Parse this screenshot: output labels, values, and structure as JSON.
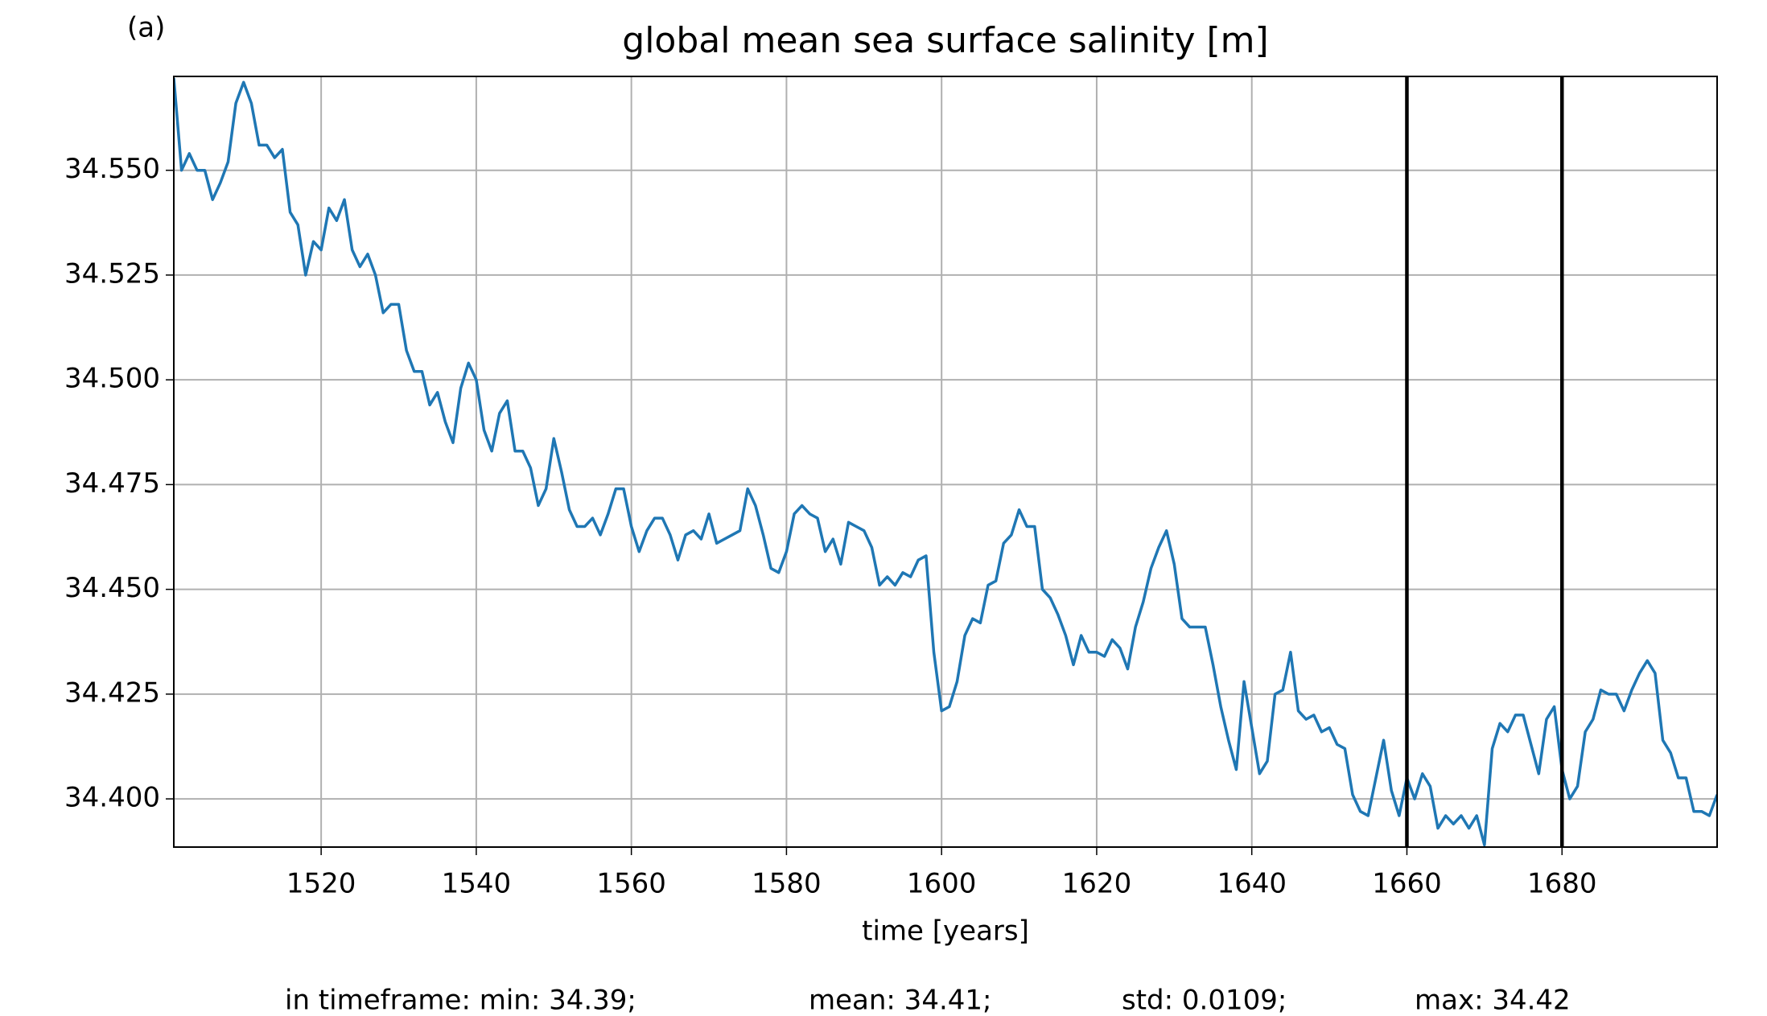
{
  "chart_data": {
    "type": "line",
    "panel_label": "(a)",
    "title": "global mean sea surface salinity [m]",
    "xlabel": "time [years]",
    "footer": [
      "in timeframe: min: 34.39;",
      "mean: 34.41;",
      "std: 0.0109;",
      "max: 34.42"
    ],
    "x": [
      1501,
      1502,
      1503,
      1504,
      1505,
      1506,
      1507,
      1508,
      1509,
      1510,
      1511,
      1512,
      1513,
      1514,
      1515,
      1516,
      1517,
      1518,
      1519,
      1520,
      1521,
      1522,
      1523,
      1524,
      1525,
      1526,
      1527,
      1528,
      1529,
      1530,
      1531,
      1532,
      1533,
      1534,
      1535,
      1536,
      1537,
      1538,
      1539,
      1540,
      1541,
      1542,
      1543,
      1544,
      1545,
      1546,
      1547,
      1548,
      1549,
      1550,
      1551,
      1552,
      1553,
      1554,
      1555,
      1556,
      1557,
      1558,
      1559,
      1560,
      1561,
      1562,
      1563,
      1564,
      1565,
      1566,
      1567,
      1568,
      1569,
      1570,
      1571,
      1572,
      1573,
      1574,
      1575,
      1576,
      1577,
      1578,
      1579,
      1580,
      1581,
      1582,
      1583,
      1584,
      1585,
      1586,
      1587,
      1588,
      1589,
      1590,
      1591,
      1592,
      1593,
      1594,
      1595,
      1596,
      1597,
      1598,
      1599,
      1600,
      1601,
      1602,
      1603,
      1604,
      1605,
      1606,
      1607,
      1608,
      1609,
      1610,
      1611,
      1612,
      1613,
      1614,
      1615,
      1616,
      1617,
      1618,
      1619,
      1620,
      1621,
      1622,
      1623,
      1624,
      1625,
      1626,
      1627,
      1628,
      1629,
      1630,
      1631,
      1632,
      1633,
      1634,
      1635,
      1636,
      1637,
      1638,
      1639,
      1640,
      1641,
      1642,
      1643,
      1644,
      1645,
      1646,
      1647,
      1648,
      1649,
      1650,
      1651,
      1652,
      1653,
      1654,
      1655,
      1656,
      1657,
      1658,
      1659,
      1660,
      1661,
      1662,
      1663,
      1664,
      1665,
      1666,
      1667,
      1668,
      1669,
      1670,
      1671,
      1672,
      1673,
      1674,
      1675,
      1676,
      1677,
      1678,
      1679,
      1680,
      1681,
      1682,
      1683,
      1684,
      1685,
      1686,
      1687,
      1688,
      1689,
      1690,
      1691,
      1692,
      1693,
      1694,
      1695,
      1696,
      1697,
      1698,
      1699,
      1700
    ],
    "series": [
      {
        "name": "global mean sea surface salinity",
        "color": "#1f77b4",
        "values": [
          34.572,
          34.55,
          34.554,
          34.55,
          34.55,
          34.543,
          34.547,
          34.552,
          34.566,
          34.571,
          34.566,
          34.556,
          34.556,
          34.553,
          34.555,
          34.54,
          34.537,
          34.525,
          34.533,
          34.531,
          34.541,
          34.538,
          34.543,
          34.531,
          34.527,
          34.53,
          34.525,
          34.516,
          34.518,
          34.518,
          34.507,
          34.502,
          34.502,
          34.494,
          34.497,
          34.49,
          34.485,
          34.498,
          34.504,
          34.5,
          34.488,
          34.483,
          34.492,
          34.495,
          34.483,
          34.483,
          34.479,
          34.47,
          34.474,
          34.486,
          34.478,
          34.469,
          34.465,
          34.465,
          34.467,
          34.463,
          34.468,
          34.474,
          34.474,
          34.465,
          34.459,
          34.464,
          34.467,
          34.467,
          34.463,
          34.457,
          34.463,
          34.464,
          34.462,
          34.468,
          34.461,
          34.462,
          34.463,
          34.464,
          34.474,
          34.47,
          34.463,
          34.455,
          34.454,
          34.459,
          34.468,
          34.47,
          34.468,
          34.467,
          34.459,
          34.462,
          34.456,
          34.466,
          34.465,
          34.464,
          34.46,
          34.451,
          34.453,
          34.451,
          34.454,
          34.453,
          34.457,
          34.458,
          34.435,
          34.421,
          34.422,
          34.428,
          34.439,
          34.443,
          34.442,
          34.451,
          34.452,
          34.461,
          34.463,
          34.469,
          34.465,
          34.465,
          34.45,
          34.448,
          34.444,
          34.439,
          34.432,
          34.439,
          34.435,
          34.435,
          34.434,
          34.438,
          34.436,
          34.431,
          34.441,
          34.447,
          34.455,
          34.46,
          34.464,
          34.456,
          34.443,
          34.441,
          34.441,
          34.441,
          34.432,
          34.422,
          34.414,
          34.407,
          34.428,
          34.417,
          34.406,
          34.409,
          34.425,
          34.426,
          34.435,
          34.421,
          34.419,
          34.42,
          34.416,
          34.417,
          34.413,
          34.412,
          34.401,
          34.397,
          34.396,
          34.405,
          34.414,
          34.402,
          34.396,
          34.405,
          34.4,
          34.406,
          34.403,
          34.393,
          34.396,
          34.394,
          34.396,
          34.393,
          34.396,
          34.389,
          34.412,
          34.418,
          34.416,
          34.42,
          34.42,
          34.413,
          34.406,
          34.419,
          34.422,
          34.407,
          34.4,
          34.403,
          34.416,
          34.419,
          34.426,
          34.425,
          34.425,
          34.421,
          34.426,
          34.43,
          34.433,
          34.43,
          34.414,
          34.411,
          34.405,
          34.405,
          34.397,
          34.397,
          34.396,
          34.401
        ]
      }
    ],
    "vlines": [
      1660,
      1680
    ],
    "vline_color": "#000000",
    "xlim": [
      1501,
      1700
    ],
    "ylim": [
      34.3885,
      34.5724
    ],
    "xticks": [
      1520,
      1540,
      1560,
      1580,
      1600,
      1620,
      1640,
      1660,
      1680
    ],
    "yticks": [
      {
        "value": 34.4,
        "label": "34.400"
      },
      34.425,
      {
        "value": 34.45,
        "label": "34.450"
      },
      34.475,
      {
        "value": 34.5,
        "label": "34.500"
      },
      34.525,
      {
        "value": 34.55,
        "label": "34.550"
      }
    ],
    "grid": true,
    "grid_color": "#b0b0b0"
  }
}
